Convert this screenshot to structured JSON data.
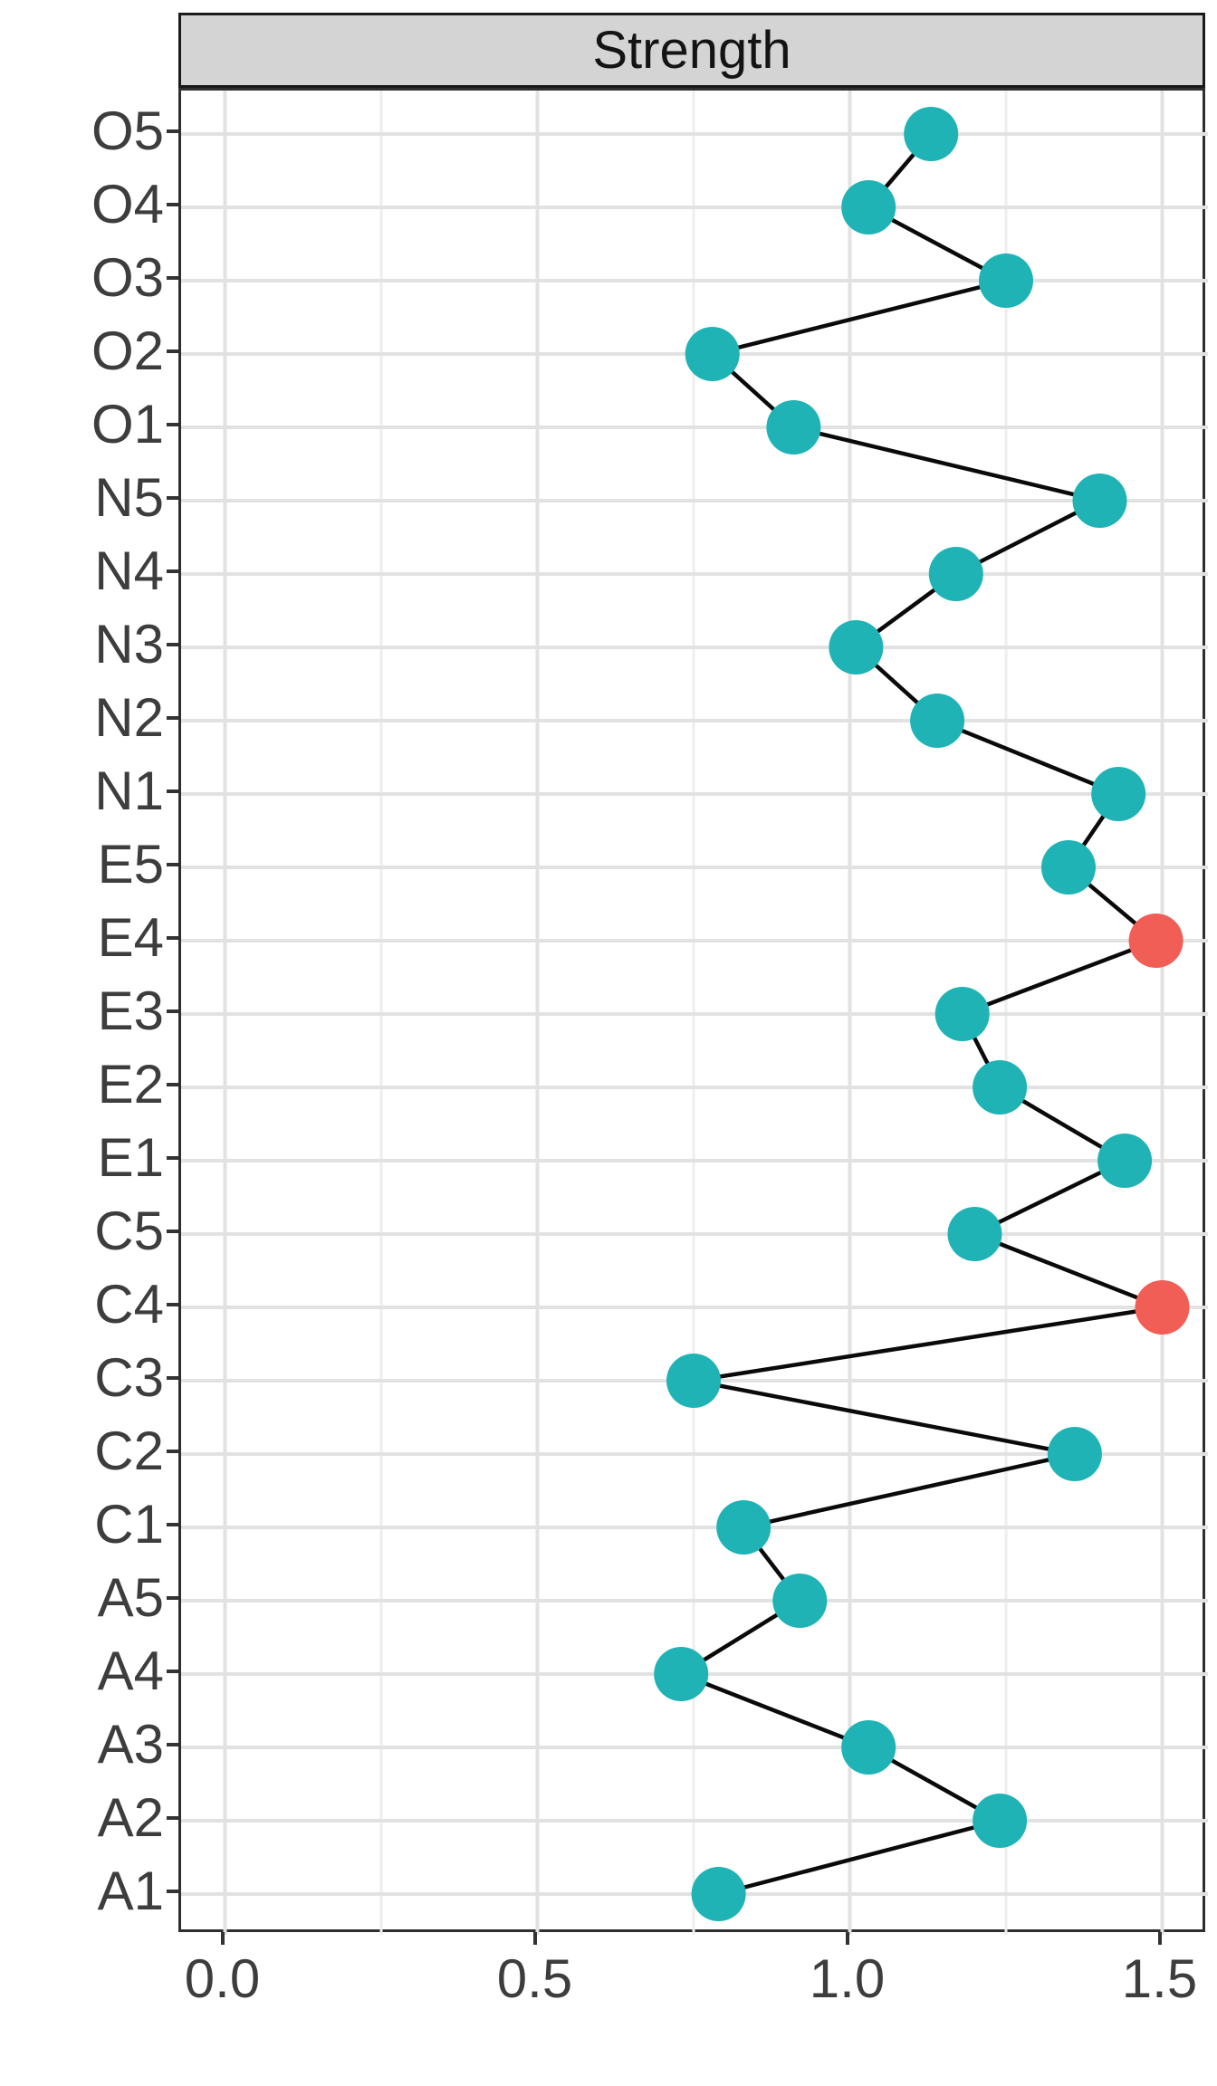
{
  "chart_data": {
    "type": "scatter",
    "title": "Strength",
    "orientation": "horizontal",
    "note_category_order": "top-to-bottom",
    "categories": [
      "O5",
      "O4",
      "O3",
      "O2",
      "O1",
      "N5",
      "N4",
      "N3",
      "N2",
      "N1",
      "E5",
      "E4",
      "E3",
      "E2",
      "E1",
      "C5",
      "C4",
      "C3",
      "C2",
      "C1",
      "A5",
      "A4",
      "A3",
      "A2",
      "A1"
    ],
    "values": [
      1.13,
      1.03,
      1.25,
      0.78,
      0.91,
      1.4,
      1.17,
      1.01,
      1.14,
      1.43,
      1.35,
      1.49,
      1.18,
      1.24,
      1.44,
      1.2,
      1.5,
      0.75,
      1.36,
      0.83,
      0.92,
      0.73,
      1.03,
      1.24,
      0.79
    ],
    "highlighted_categories": [
      "E4",
      "C4"
    ],
    "connector": "line",
    "xlabel": "",
    "ylabel": "",
    "xlim": [
      -0.07,
      1.573
    ],
    "x_major_ticks": [
      0.0,
      0.5,
      1.0,
      1.5
    ],
    "x_tick_labels": [
      "0.0",
      "0.5",
      "1.0",
      "1.5"
    ],
    "x_minor_gridlines": [
      0.25,
      0.75,
      1.25
    ],
    "grid": "horizontal major per category; vertical major + minor",
    "legend": "none",
    "colors": {
      "point_default": "#1fb3b5",
      "point_highlight": "#f15e56",
      "connector_line": "#0a0a0a",
      "grid_major": "#e2e2e2",
      "grid_minor": "#eeeeee",
      "panel_border": "#2f2f2f",
      "strip_fill": "#d4d4d4",
      "strip_border": "#1a1a1a",
      "axis_text": "#3d3d3d",
      "tick_mark": "#333333"
    }
  }
}
